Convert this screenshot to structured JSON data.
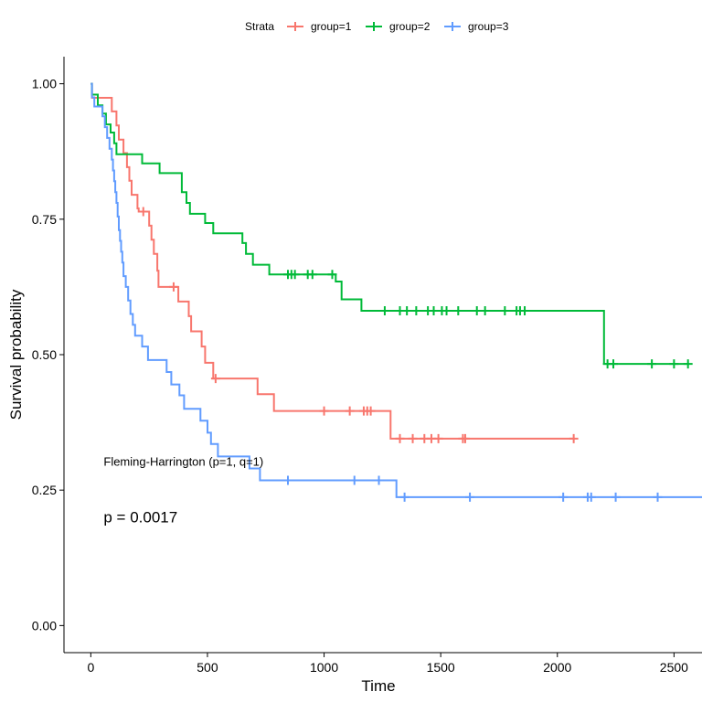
{
  "chart_data": {
    "type": "line",
    "subtype": "kaplan-meier-step",
    "title": "",
    "xlabel": "Time",
    "ylabel": "Survival probability",
    "xlim": [
      -115,
      2620
    ],
    "ylim": [
      -0.05,
      1.05
    ],
    "x_ticks": [
      0,
      500,
      1000,
      1500,
      2000,
      2500
    ],
    "y_ticks": [
      0.0,
      0.25,
      0.5,
      0.75,
      1.0
    ],
    "x_tick_labels": [
      "0",
      "500",
      "1000",
      "1500",
      "2000",
      "2500"
    ],
    "y_tick_labels": [
      "0.00",
      "0.25",
      "0.50",
      "0.75",
      "1.00"
    ],
    "grid": false,
    "legend": {
      "position": "top",
      "title": "Strata",
      "entries": [
        "group=1",
        "group=2",
        "group=3"
      ]
    },
    "annotations": {
      "test": "Fleming-Harrington (p=1, q=1)",
      "pvalue": "p = 0.0017",
      "test_pos": [
        55,
        0.295
      ],
      "pvalue_pos": [
        55,
        0.19
      ]
    },
    "series": [
      {
        "name": "group=1",
        "color": "#F8766D",
        "steps": [
          [
            0,
            1.0
          ],
          [
            5,
            0.974
          ],
          [
            90,
            0.949
          ],
          [
            110,
            0.923
          ],
          [
            120,
            0.897
          ],
          [
            140,
            0.872
          ],
          [
            155,
            0.846
          ],
          [
            165,
            0.821
          ],
          [
            175,
            0.795
          ],
          [
            200,
            0.77
          ],
          [
            205,
            0.764
          ],
          [
            250,
            0.738
          ],
          [
            260,
            0.712
          ],
          [
            270,
            0.686
          ],
          [
            285,
            0.655
          ],
          [
            290,
            0.625
          ],
          [
            375,
            0.598
          ],
          [
            420,
            0.571
          ],
          [
            430,
            0.543
          ],
          [
            475,
            0.515
          ],
          [
            490,
            0.485
          ],
          [
            525,
            0.456
          ],
          [
            715,
            0.427
          ],
          [
            785,
            0.396
          ],
          [
            1285,
            0.345
          ],
          [
            2075,
            0.345
          ]
        ],
        "censored": [
          [
            225,
            0.764
          ],
          [
            355,
            0.625
          ],
          [
            535,
            0.456
          ],
          [
            1000,
            0.396
          ],
          [
            1110,
            0.396
          ],
          [
            1170,
            0.396
          ],
          [
            1185,
            0.396
          ],
          [
            1200,
            0.396
          ],
          [
            1325,
            0.345
          ],
          [
            1380,
            0.345
          ],
          [
            1430,
            0.345
          ],
          [
            1460,
            0.345
          ],
          [
            1490,
            0.345
          ],
          [
            1595,
            0.345
          ],
          [
            1605,
            0.345
          ],
          [
            2070,
            0.345
          ]
        ]
      },
      {
        "name": "group=2",
        "color": "#00BA38",
        "steps": [
          [
            0,
            1.0
          ],
          [
            5,
            0.98
          ],
          [
            30,
            0.96
          ],
          [
            50,
            0.945
          ],
          [
            65,
            0.925
          ],
          [
            85,
            0.91
          ],
          [
            100,
            0.89
          ],
          [
            110,
            0.87
          ],
          [
            220,
            0.853
          ],
          [
            295,
            0.835
          ],
          [
            390,
            0.8
          ],
          [
            410,
            0.78
          ],
          [
            425,
            0.76
          ],
          [
            490,
            0.743
          ],
          [
            525,
            0.724
          ],
          [
            650,
            0.706
          ],
          [
            665,
            0.686
          ],
          [
            695,
            0.666
          ],
          [
            765,
            0.648
          ],
          [
            1050,
            0.635
          ],
          [
            1075,
            0.602
          ],
          [
            1160,
            0.581
          ],
          [
            2200,
            0.483
          ],
          [
            2565,
            0.483
          ]
        ],
        "censored": [
          [
            845,
            0.648
          ],
          [
            860,
            0.648
          ],
          [
            875,
            0.648
          ],
          [
            930,
            0.648
          ],
          [
            950,
            0.648
          ],
          [
            1035,
            0.648
          ],
          [
            1260,
            0.581
          ],
          [
            1325,
            0.581
          ],
          [
            1355,
            0.581
          ],
          [
            1395,
            0.581
          ],
          [
            1445,
            0.581
          ],
          [
            1470,
            0.581
          ],
          [
            1505,
            0.581
          ],
          [
            1525,
            0.581
          ],
          [
            1575,
            0.581
          ],
          [
            1655,
            0.581
          ],
          [
            1690,
            0.581
          ],
          [
            1775,
            0.581
          ],
          [
            1825,
            0.581
          ],
          [
            1840,
            0.581
          ],
          [
            1860,
            0.581
          ],
          [
            2215,
            0.483
          ],
          [
            2240,
            0.483
          ],
          [
            2405,
            0.483
          ],
          [
            2500,
            0.483
          ],
          [
            2560,
            0.483
          ]
        ]
      },
      {
        "name": "group=3",
        "color": "#619CFF",
        "steps": [
          [
            0,
            1.0
          ],
          [
            5,
            0.975
          ],
          [
            15,
            0.958
          ],
          [
            50,
            0.94
          ],
          [
            60,
            0.92
          ],
          [
            70,
            0.9
          ],
          [
            80,
            0.88
          ],
          [
            90,
            0.86
          ],
          [
            95,
            0.84
          ],
          [
            100,
            0.82
          ],
          [
            105,
            0.8
          ],
          [
            110,
            0.78
          ],
          [
            115,
            0.755
          ],
          [
            120,
            0.73
          ],
          [
            125,
            0.71
          ],
          [
            130,
            0.69
          ],
          [
            135,
            0.67
          ],
          [
            140,
            0.645
          ],
          [
            150,
            0.625
          ],
          [
            160,
            0.6
          ],
          [
            170,
            0.575
          ],
          [
            180,
            0.555
          ],
          [
            190,
            0.535
          ],
          [
            220,
            0.515
          ],
          [
            245,
            0.49
          ],
          [
            325,
            0.468
          ],
          [
            345,
            0.445
          ],
          [
            380,
            0.425
          ],
          [
            400,
            0.4
          ],
          [
            470,
            0.378
          ],
          [
            500,
            0.356
          ],
          [
            515,
            0.335
          ],
          [
            545,
            0.312
          ],
          [
            680,
            0.29
          ],
          [
            725,
            0.268
          ],
          [
            1310,
            0.237
          ],
          [
            2620,
            0.237
          ]
        ],
        "censored": [
          [
            845,
            0.268
          ],
          [
            1130,
            0.268
          ],
          [
            1235,
            0.268
          ],
          [
            1345,
            0.237
          ],
          [
            1625,
            0.237
          ],
          [
            2025,
            0.237
          ],
          [
            2130,
            0.237
          ],
          [
            2145,
            0.237
          ],
          [
            2250,
            0.237
          ],
          [
            2430,
            0.237
          ]
        ]
      }
    ]
  }
}
